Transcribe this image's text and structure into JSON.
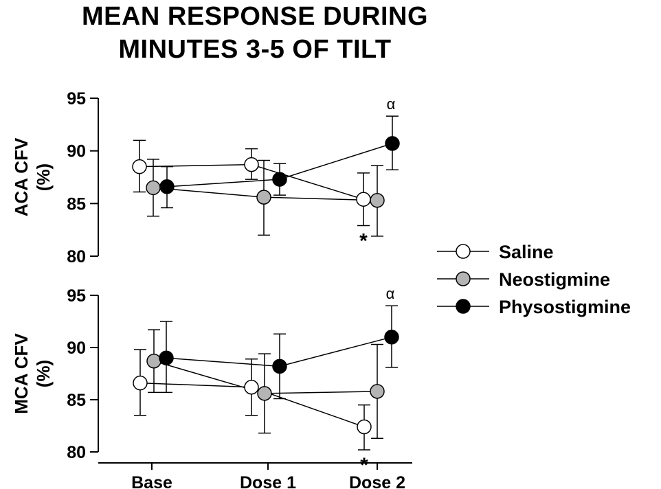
{
  "title": {
    "line1": "MEAN RESPONSE DURING",
    "line2": "MINUTES 3-5 OF TILT"
  },
  "colors": {
    "Saline": "#ffffff",
    "Neostigmine": "#b4b4b4",
    "Physostigmine": "#000000",
    "axis": "#000000"
  },
  "chart_data": [
    {
      "type": "line",
      "panel": "top",
      "ylabel_line1": "ACA CFV",
      "ylabel_line2": "(%)",
      "categories": [
        "Base",
        "Dose 1",
        "Dose 2"
      ],
      "ylim": [
        80,
        95
      ],
      "yticks": [
        80,
        85,
        90,
        95
      ],
      "grid": false,
      "series": [
        {
          "name": "Saline",
          "values": [
            88.5,
            88.7,
            85.4
          ],
          "err_low": [
            86.1,
            87.3,
            82.9
          ],
          "err_high": [
            91.0,
            90.2,
            87.9
          ]
        },
        {
          "name": "Neostigmine",
          "values": [
            86.5,
            85.6,
            85.3
          ],
          "err_low": [
            83.8,
            82.0,
            81.9
          ],
          "err_high": [
            89.2,
            89.1,
            88.6
          ]
        },
        {
          "name": "Physostigmine",
          "values": [
            86.6,
            87.3,
            90.7
          ],
          "err_low": [
            84.6,
            85.8,
            88.2
          ],
          "err_high": [
            88.5,
            88.8,
            93.3
          ]
        }
      ],
      "annotations": [
        {
          "text": "α",
          "category": "Dose 2",
          "series": "Physostigmine",
          "place": "above"
        },
        {
          "text": "*",
          "category": "Dose 2",
          "series": "Saline",
          "place": "below"
        }
      ]
    },
    {
      "type": "line",
      "panel": "bottom",
      "ylabel_line1": "MCA CFV",
      "ylabel_line2": "(%)",
      "categories": [
        "Base",
        "Dose 1",
        "Dose 2"
      ],
      "ylim": [
        80,
        95
      ],
      "yticks": [
        80,
        85,
        90,
        95
      ],
      "grid": false,
      "series": [
        {
          "name": "Saline",
          "values": [
            86.6,
            86.2,
            82.4
          ],
          "err_low": [
            83.5,
            83.5,
            80.2
          ],
          "err_high": [
            89.8,
            88.9,
            84.5
          ]
        },
        {
          "name": "Neostigmine",
          "values": [
            88.7,
            85.6,
            85.8
          ],
          "err_low": [
            85.7,
            81.8,
            81.3
          ],
          "err_high": [
            91.7,
            89.4,
            90.3
          ]
        },
        {
          "name": "Physostigmine",
          "values": [
            89.0,
            88.2,
            91.0
          ],
          "err_low": [
            85.7,
            85.1,
            88.1
          ],
          "err_high": [
            92.5,
            91.3,
            94.0
          ]
        }
      ],
      "annotations": [
        {
          "text": "α",
          "category": "Dose 2",
          "series": "Physostigmine",
          "place": "above"
        },
        {
          "text": "*",
          "category": "Dose 2",
          "series": "Saline",
          "place": "below"
        }
      ]
    }
  ],
  "legend": {
    "placement": "right",
    "entries": [
      "Saline",
      "Neostigmine",
      "Physostigmine"
    ]
  }
}
